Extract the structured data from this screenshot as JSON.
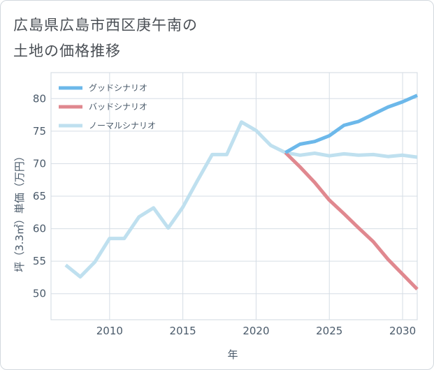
{
  "header": {
    "title_line1": "広島県広島市西区庚午南の",
    "title_line2": "土地の価格推移"
  },
  "chart_data": {
    "type": "line",
    "title": "広島県広島市西区庚午南の土地の価格推移",
    "xlabel": "年",
    "ylabel": "坪（3.3㎡）単価（万円）",
    "xlim": [
      2006,
      2031
    ],
    "ylim": [
      46,
      84
    ],
    "x_ticks": [
      2010,
      2015,
      2020,
      2025,
      2030
    ],
    "y_ticks": [
      50,
      55,
      60,
      65,
      70,
      75,
      80
    ],
    "legend_position": "top-left",
    "series": [
      {
        "name": "グッドシナリオ",
        "color": "#6cb8ea",
        "x": [
          2022,
          2023,
          2024,
          2025,
          2026,
          2027,
          2028,
          2029,
          2030,
          2031
        ],
        "values": [
          71.7,
          73.0,
          73.4,
          74.3,
          75.9,
          76.5,
          77.6,
          78.7,
          79.5,
          80.5
        ]
      },
      {
        "name": "バッドシナリオ",
        "color": "#e0888f",
        "x": [
          2022,
          2023,
          2024,
          2025,
          2026,
          2027,
          2028,
          2029,
          2030,
          2031
        ],
        "values": [
          71.7,
          69.5,
          67.1,
          64.4,
          62.3,
          60.1,
          58.0,
          55.3,
          53.0,
          50.7
        ]
      },
      {
        "name": "ノーマルシナリオ",
        "color": "#bfe0ef",
        "x": [
          2007,
          2008,
          2009,
          2010,
          2011,
          2012,
          2013,
          2014,
          2015,
          2016,
          2017,
          2018,
          2019,
          2020,
          2021,
          2022,
          2023,
          2024,
          2025,
          2026,
          2027,
          2028,
          2029,
          2030,
          2031
        ],
        "values": [
          54.4,
          52.6,
          54.9,
          58.5,
          58.5,
          61.8,
          63.2,
          60.1,
          63.3,
          67.4,
          71.4,
          71.4,
          76.4,
          75.1,
          72.8,
          71.7,
          71.3,
          71.6,
          71.2,
          71.5,
          71.3,
          71.4,
          71.1,
          71.3,
          71.0
        ]
      }
    ]
  }
}
